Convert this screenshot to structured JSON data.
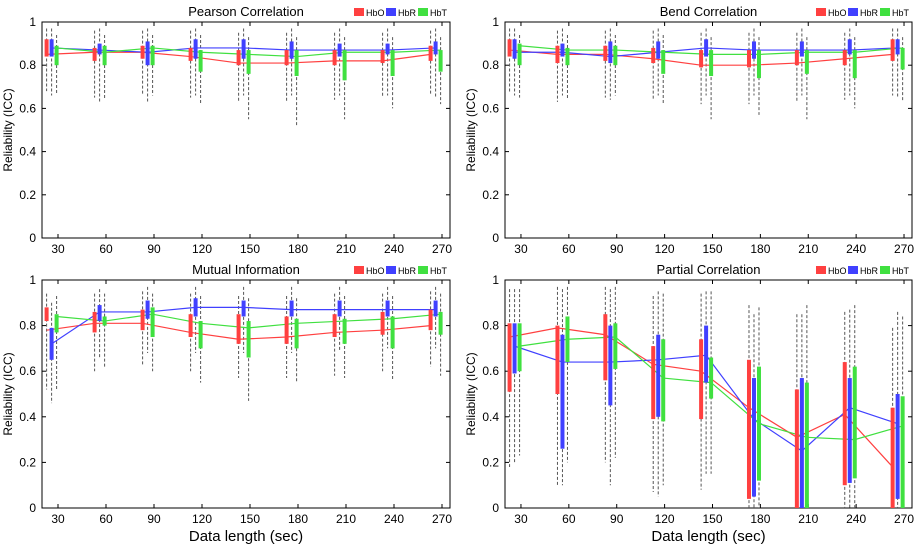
{
  "colors": {
    "HbO": "#ff4040",
    "HbR": "#4040ff",
    "HbT": "#40e040"
  },
  "chart_data": [
    {
      "type": "box",
      "title": "Pearson Correlation",
      "xlabel": "",
      "ylabel": "Reliability (ICC)",
      "xlim": [
        20,
        275
      ],
      "ylim": [
        0,
        1
      ],
      "xticks": [
        30,
        60,
        90,
        120,
        150,
        180,
        210,
        240,
        270
      ],
      "yticks": [
        0,
        0.2,
        0.4,
        0.6,
        0.8,
        1
      ],
      "legend": [
        "HbO",
        "HbR",
        "HbT"
      ],
      "legend_position": "top-right",
      "series": [
        {
          "name": "HbO",
          "median": [
            0.85,
            0.86,
            0.86,
            0.84,
            0.81,
            0.81,
            0.82,
            0.82,
            0.85
          ],
          "q1": [
            0.84,
            0.82,
            0.83,
            0.82,
            0.8,
            0.8,
            0.8,
            0.81,
            0.82
          ],
          "q3": [
            0.92,
            0.88,
            0.89,
            0.88,
            0.87,
            0.87,
            0.87,
            0.87,
            0.89
          ],
          "wlo": [
            0.68,
            0.65,
            0.66,
            0.65,
            0.63,
            0.63,
            0.64,
            0.65,
            0.66
          ],
          "whi": [
            0.97,
            0.96,
            0.96,
            0.96,
            0.95,
            0.95,
            0.95,
            0.95,
            0.96
          ]
        },
        {
          "name": "HbR",
          "median": [
            0.88,
            0.87,
            0.86,
            0.88,
            0.88,
            0.87,
            0.87,
            0.87,
            0.88
          ],
          "q1": [
            0.84,
            0.85,
            0.8,
            0.83,
            0.83,
            0.83,
            0.84,
            0.85,
            0.85
          ],
          "q3": [
            0.92,
            0.9,
            0.91,
            0.92,
            0.92,
            0.91,
            0.9,
            0.9,
            0.91
          ],
          "wlo": [
            0.66,
            0.63,
            0.63,
            0.66,
            0.66,
            0.66,
            0.66,
            0.66,
            0.65
          ],
          "whi": [
            0.97,
            0.97,
            0.97,
            0.97,
            0.97,
            0.97,
            0.97,
            0.97,
            0.97
          ]
        },
        {
          "name": "HbT",
          "median": [
            0.88,
            0.86,
            0.88,
            0.86,
            0.85,
            0.84,
            0.86,
            0.86,
            0.87
          ],
          "q1": [
            0.8,
            0.8,
            0.8,
            0.77,
            0.76,
            0.75,
            0.73,
            0.75,
            0.77
          ],
          "q3": [
            0.89,
            0.89,
            0.89,
            0.87,
            0.87,
            0.87,
            0.87,
            0.87,
            0.87
          ],
          "wlo": [
            0.67,
            0.64,
            0.66,
            0.62,
            0.55,
            0.52,
            0.55,
            0.6,
            0.62
          ],
          "whi": [
            0.94,
            0.94,
            0.94,
            0.94,
            0.93,
            0.93,
            0.93,
            0.93,
            0.93
          ]
        }
      ]
    },
    {
      "type": "box",
      "title": "Bend Correlation",
      "xlabel": "",
      "ylabel": "Reliability (ICC)",
      "xlim": [
        20,
        275
      ],
      "ylim": [
        0,
        1
      ],
      "xticks": [
        30,
        60,
        90,
        120,
        150,
        180,
        210,
        240,
        270
      ],
      "yticks": [
        0,
        0.2,
        0.4,
        0.6,
        0.8,
        1
      ],
      "legend": [
        "HbO",
        "HbR",
        "HbT"
      ],
      "legend_position": "top-right",
      "series": [
        {
          "name": "HbO",
          "median": [
            0.87,
            0.85,
            0.85,
            0.83,
            0.8,
            0.8,
            0.81,
            0.83,
            0.85
          ],
          "q1": [
            0.84,
            0.81,
            0.82,
            0.81,
            0.79,
            0.79,
            0.8,
            0.8,
            0.82
          ],
          "q3": [
            0.92,
            0.89,
            0.89,
            0.88,
            0.87,
            0.87,
            0.87,
            0.87,
            0.92
          ],
          "wlo": [
            0.67,
            0.63,
            0.65,
            0.64,
            0.62,
            0.62,
            0.63,
            0.64,
            0.66
          ],
          "whi": [
            0.97,
            0.96,
            0.96,
            0.96,
            0.95,
            0.95,
            0.95,
            0.95,
            0.97
          ]
        },
        {
          "name": "HbR",
          "median": [
            0.86,
            0.86,
            0.84,
            0.86,
            0.88,
            0.87,
            0.87,
            0.87,
            0.88
          ],
          "q1": [
            0.83,
            0.84,
            0.81,
            0.83,
            0.84,
            0.83,
            0.84,
            0.85,
            0.85
          ],
          "q3": [
            0.92,
            0.9,
            0.91,
            0.91,
            0.92,
            0.91,
            0.91,
            0.92,
            0.92
          ],
          "wlo": [
            0.66,
            0.66,
            0.64,
            0.66,
            0.66,
            0.66,
            0.66,
            0.66,
            0.65
          ],
          "whi": [
            0.97,
            0.97,
            0.97,
            0.97,
            0.97,
            0.97,
            0.97,
            0.97,
            0.97
          ]
        },
        {
          "name": "HbT",
          "median": [
            0.89,
            0.87,
            0.87,
            0.86,
            0.85,
            0.85,
            0.86,
            0.86,
            0.88
          ],
          "q1": [
            0.8,
            0.8,
            0.8,
            0.76,
            0.75,
            0.74,
            0.76,
            0.74,
            0.78
          ],
          "q3": [
            0.9,
            0.88,
            0.89,
            0.87,
            0.87,
            0.87,
            0.87,
            0.87,
            0.88
          ],
          "wlo": [
            0.65,
            0.64,
            0.66,
            0.62,
            0.55,
            0.57,
            0.55,
            0.6,
            0.63
          ],
          "whi": [
            0.94,
            0.94,
            0.94,
            0.94,
            0.93,
            0.93,
            0.93,
            0.93,
            0.93
          ]
        }
      ]
    },
    {
      "type": "box",
      "title": "Mutual Information",
      "xlabel": "Data length (sec)",
      "ylabel": "Reliability (ICC)",
      "xlim": [
        20,
        275
      ],
      "ylim": [
        0,
        1
      ],
      "xticks": [
        30,
        60,
        90,
        120,
        150,
        180,
        210,
        240,
        270
      ],
      "yticks": [
        0,
        0.2,
        0.4,
        0.6,
        0.8,
        1
      ],
      "legend": [
        "HbO",
        "HbR",
        "HbT"
      ],
      "legend_position": "top-right",
      "series": [
        {
          "name": "HbO",
          "median": [
            0.78,
            0.81,
            0.81,
            0.77,
            0.74,
            0.75,
            0.77,
            0.78,
            0.8
          ],
          "q1": [
            0.82,
            0.77,
            0.78,
            0.75,
            0.72,
            0.72,
            0.75,
            0.76,
            0.78
          ],
          "q3": [
            0.88,
            0.86,
            0.87,
            0.85,
            0.85,
            0.84,
            0.85,
            0.86,
            0.87
          ],
          "wlo": [
            0.52,
            0.6,
            0.63,
            0.6,
            0.57,
            0.57,
            0.58,
            0.6,
            0.62
          ],
          "whi": [
            0.94,
            0.94,
            0.95,
            0.94,
            0.93,
            0.93,
            0.94,
            0.94,
            0.95
          ]
        },
        {
          "name": "HbR",
          "median": [
            0.72,
            0.86,
            0.86,
            0.88,
            0.88,
            0.87,
            0.87,
            0.87,
            0.87
          ],
          "q1": [
            0.65,
            0.82,
            0.83,
            0.84,
            0.84,
            0.84,
            0.84,
            0.84,
            0.84
          ],
          "q3": [
            0.79,
            0.89,
            0.91,
            0.92,
            0.91,
            0.91,
            0.91,
            0.91,
            0.91
          ],
          "wlo": [
            0.46,
            0.66,
            0.68,
            0.68,
            0.68,
            0.68,
            0.69,
            0.7,
            0.7
          ],
          "whi": [
            0.9,
            0.96,
            0.97,
            0.97,
            0.97,
            0.97,
            0.97,
            0.97,
            0.97
          ]
        },
        {
          "name": "HbT",
          "median": [
            0.84,
            0.82,
            0.85,
            0.81,
            0.79,
            0.81,
            0.82,
            0.83,
            0.85
          ],
          "q1": [
            0.77,
            0.8,
            0.75,
            0.7,
            0.66,
            0.7,
            0.72,
            0.7,
            0.76
          ],
          "q3": [
            0.85,
            0.84,
            0.88,
            0.82,
            0.82,
            0.83,
            0.83,
            0.84,
            0.86
          ],
          "wlo": [
            0.52,
            0.62,
            0.6,
            0.55,
            0.47,
            0.55,
            0.57,
            0.56,
            0.58
          ],
          "whi": [
            0.93,
            0.94,
            0.94,
            0.93,
            0.92,
            0.92,
            0.93,
            0.93,
            0.94
          ]
        }
      ]
    },
    {
      "type": "box",
      "title": "Partial Correlation",
      "xlabel": "Data length (sec)",
      "ylabel": "Reliability (ICC)",
      "xlim": [
        20,
        275
      ],
      "ylim": [
        0,
        1
      ],
      "xticks": [
        30,
        60,
        90,
        120,
        150,
        180,
        210,
        240,
        270
      ],
      "yticks": [
        0,
        0.2,
        0.4,
        0.6,
        0.8,
        1
      ],
      "legend": [
        "HbO",
        "HbR",
        "HbT"
      ],
      "legend_position": "top-right",
      "series": [
        {
          "name": "HbO",
          "median": [
            0.75,
            0.79,
            0.76,
            0.63,
            0.6,
            0.44,
            0.31,
            0.41,
            0.18
          ],
          "q1": [
            0.51,
            0.5,
            0.56,
            0.39,
            0.39,
            0.04,
            0.0,
            0.1,
            0.0
          ],
          "q3": [
            0.81,
            0.8,
            0.85,
            0.71,
            0.74,
            0.65,
            0.52,
            0.64,
            0.44
          ],
          "wlo": [
            0.18,
            0.1,
            0.2,
            0.07,
            0.08,
            0.0,
            0.0,
            0.0,
            0.0
          ],
          "whi": [
            0.96,
            0.97,
            0.97,
            0.93,
            0.94,
            0.89,
            0.85,
            0.86,
            0.79
          ]
        },
        {
          "name": "HbR",
          "median": [
            0.71,
            0.64,
            0.64,
            0.65,
            0.67,
            0.39,
            0.25,
            0.44,
            0.37
          ],
          "q1": [
            0.59,
            0.26,
            0.45,
            0.4,
            0.55,
            0.05,
            0.0,
            0.11,
            0.04
          ],
          "q3": [
            0.81,
            0.76,
            0.8,
            0.76,
            0.8,
            0.57,
            0.57,
            0.57,
            0.5
          ],
          "wlo": [
            0.2,
            0.1,
            0.1,
            0.05,
            0.15,
            0.0,
            0.0,
            0.0,
            0.0
          ],
          "whi": [
            0.96,
            0.96,
            0.96,
            0.95,
            0.95,
            0.85,
            0.85,
            0.87,
            0.86
          ]
        },
        {
          "name": "HbT",
          "median": [
            0.71,
            0.74,
            0.75,
            0.57,
            0.55,
            0.37,
            0.31,
            0.3,
            0.36
          ],
          "q1": [
            0.6,
            0.64,
            0.61,
            0.38,
            0.48,
            0.12,
            0.0,
            0.13,
            0.0
          ],
          "q3": [
            0.81,
            0.84,
            0.81,
            0.74,
            0.66,
            0.62,
            0.55,
            0.62,
            0.49
          ],
          "wlo": [
            0.23,
            0.2,
            0.22,
            0.1,
            0.15,
            0.0,
            0.0,
            0.0,
            0.0
          ],
          "whi": [
            0.96,
            0.97,
            0.97,
            0.94,
            0.95,
            0.88,
            0.89,
            0.89,
            0.84
          ]
        }
      ]
    }
  ]
}
